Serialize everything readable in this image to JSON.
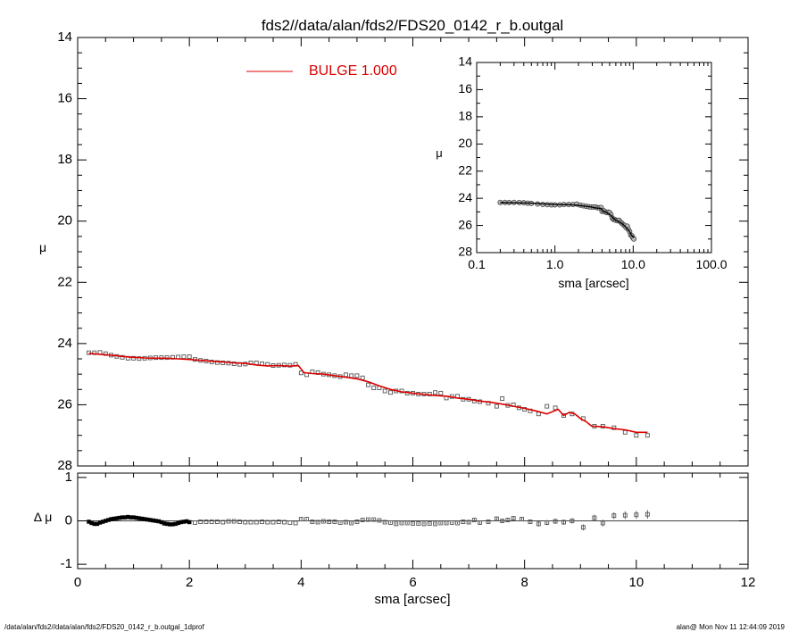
{
  "title": "fds2//data/alan/fds2/FDS20_0142_r_b.outgal",
  "footer_left": "/data/alan/fds2//data/alan/fds2/FDS20_0142_r_b.outgal_1dprof",
  "footer_right": "alan@  Mon Nov 11 12:44:09 2019",
  "colors": {
    "model": "#dd0000",
    "data": "#555555",
    "axes": "#000000"
  },
  "chart_data": [
    {
      "type": "scatter",
      "panel": "main",
      "xlabel": "",
      "ylabel": "μ",
      "xlim": [
        0,
        12
      ],
      "ylim": [
        28,
        14
      ],
      "y_ticks": [
        14,
        16,
        18,
        20,
        22,
        24,
        26,
        28
      ],
      "y_tick_labels": [
        "14",
        "16",
        "18",
        "20",
        "22",
        "24",
        "26",
        "28"
      ],
      "legend": {
        "label": "BULGE  1.000",
        "placement": "top-center"
      },
      "series": [
        {
          "name": "BULGE  1.000",
          "kind": "line",
          "x": [
            0.2,
            0.4,
            0.6,
            0.8,
            1.0,
            1.2,
            1.4,
            1.6,
            1.8,
            2.0,
            2.2,
            2.4,
            2.6,
            2.8,
            3.0,
            3.2,
            3.4,
            3.6,
            3.8,
            3.95,
            4.05,
            4.2,
            4.4,
            4.6,
            4.8,
            5.0,
            5.2,
            5.4,
            5.6,
            5.8,
            6.0,
            6.2,
            6.4,
            6.6,
            6.8,
            7.0,
            7.2,
            7.4,
            7.6,
            7.8,
            8.0,
            8.2,
            8.4,
            8.6,
            8.7,
            8.8,
            8.9,
            9.0,
            9.1,
            9.2,
            9.4,
            9.6,
            9.8,
            10.0,
            10.2
          ],
          "y": [
            24.32,
            24.35,
            24.38,
            24.42,
            24.45,
            24.47,
            24.48,
            24.48,
            24.5,
            24.52,
            24.55,
            24.58,
            24.6,
            24.63,
            24.65,
            24.7,
            24.73,
            24.72,
            24.74,
            24.72,
            24.95,
            24.98,
            25.0,
            25.05,
            25.1,
            25.15,
            25.25,
            25.38,
            25.5,
            25.58,
            25.62,
            25.66,
            25.7,
            25.72,
            25.78,
            25.82,
            25.88,
            25.92,
            25.98,
            26.05,
            26.12,
            26.2,
            26.3,
            26.15,
            26.35,
            26.25,
            26.3,
            26.45,
            26.55,
            26.7,
            26.72,
            26.78,
            26.82,
            26.9,
            26.9
          ]
        },
        {
          "name": "",
          "kind": "squares",
          "x": [
            0.2,
            0.3,
            0.4,
            0.5,
            0.6,
            0.7,
            0.8,
            0.9,
            1.0,
            1.1,
            1.2,
            1.3,
            1.4,
            1.5,
            1.6,
            1.7,
            1.8,
            1.9,
            2.0,
            2.1,
            2.2,
            2.3,
            2.4,
            2.5,
            2.6,
            2.7,
            2.8,
            2.9,
            3.0,
            3.1,
            3.2,
            3.3,
            3.4,
            3.5,
            3.6,
            3.7,
            3.8,
            3.9,
            4.0,
            4.1,
            4.2,
            4.3,
            4.4,
            4.5,
            4.6,
            4.7,
            4.8,
            4.9,
            5.0,
            5.1,
            5.2,
            5.3,
            5.4,
            5.5,
            5.6,
            5.7,
            5.8,
            5.9,
            6.0,
            6.1,
            6.2,
            6.3,
            6.4,
            6.5,
            6.6,
            6.7,
            6.8,
            6.9,
            7.0,
            7.1,
            7.2,
            7.35,
            7.5,
            7.6,
            7.7,
            7.8,
            7.9,
            8.0,
            8.1,
            8.25,
            8.4,
            8.55,
            8.7,
            8.85,
            9.05,
            9.25,
            9.4,
            9.6,
            9.8,
            10.0,
            10.2
          ],
          "y": [
            24.3,
            24.3,
            24.29,
            24.33,
            24.38,
            24.42,
            24.45,
            24.48,
            24.48,
            24.49,
            24.48,
            24.47,
            24.46,
            24.46,
            24.46,
            24.45,
            24.44,
            24.43,
            24.43,
            24.52,
            24.55,
            24.57,
            24.6,
            24.62,
            24.63,
            24.64,
            24.66,
            24.68,
            24.67,
            24.63,
            24.63,
            24.66,
            24.68,
            24.72,
            24.71,
            24.7,
            24.71,
            24.68,
            24.96,
            25.02,
            24.92,
            24.95,
            25.0,
            25.02,
            25.05,
            25.08,
            25.02,
            25.05,
            25.05,
            25.12,
            25.35,
            25.45,
            25.45,
            25.55,
            25.6,
            25.55,
            25.55,
            25.62,
            25.62,
            25.65,
            25.65,
            25.65,
            25.6,
            25.62,
            25.78,
            25.73,
            25.72,
            25.82,
            25.82,
            25.88,
            25.9,
            25.95,
            26.05,
            25.8,
            26.02,
            26.0,
            26.1,
            26.15,
            26.2,
            26.3,
            26.05,
            26.1,
            26.35,
            26.3,
            26.45,
            26.7,
            26.7,
            26.75,
            26.9,
            27.0,
            27.0
          ]
        }
      ]
    },
    {
      "type": "scatter",
      "panel": "residual",
      "xlabel": "sma [arcsec]",
      "ylabel": "Δ μ",
      "xlim": [
        0,
        12
      ],
      "ylim": [
        -1.1,
        1.1
      ],
      "x_ticks": [
        0,
        2,
        4,
        6,
        8,
        10,
        12
      ],
      "x_tick_labels": [
        "0",
        "2",
        "4",
        "6",
        "8",
        "10",
        "12"
      ],
      "y_ticks": [
        1,
        0,
        -1
      ],
      "y_tick_labels": [
        "1",
        "0",
        "-1"
      ],
      "series": [
        {
          "name": "",
          "kind": "squares",
          "x": [
            0.2,
            0.25,
            0.3,
            0.35,
            0.4,
            0.45,
            0.5,
            0.55,
            0.6,
            0.65,
            0.7,
            0.75,
            0.8,
            0.85,
            0.9,
            0.95,
            1.0,
            1.05,
            1.1,
            1.15,
            1.2,
            1.25,
            1.3,
            1.35,
            1.4,
            1.45,
            1.5,
            1.55,
            1.6,
            1.65,
            1.7,
            1.75,
            1.8,
            1.85,
            1.9,
            1.95,
            2.0,
            2.1,
            2.2,
            2.3,
            2.4,
            2.5,
            2.6,
            2.7,
            2.8,
            2.9,
            3.0,
            3.1,
            3.2,
            3.3,
            3.4,
            3.5,
            3.6,
            3.7,
            3.8,
            3.9,
            4.0,
            4.1,
            4.2,
            4.3,
            4.4,
            4.5,
            4.6,
            4.7,
            4.8,
            4.9,
            5.0,
            5.1,
            5.2,
            5.3,
            5.4,
            5.5,
            5.6,
            5.7,
            5.8,
            5.9,
            6.0,
            6.1,
            6.2,
            6.3,
            6.4,
            6.5,
            6.6,
            6.7,
            6.8,
            6.9,
            7.0,
            7.1,
            7.2,
            7.35,
            7.5,
            7.6,
            7.7,
            7.8,
            7.95,
            8.1,
            8.25,
            8.4,
            8.55,
            8.7,
            8.85,
            9.05,
            9.25,
            9.4,
            9.6,
            9.8,
            10.0,
            10.2
          ],
          "y": [
            -0.02,
            -0.05,
            -0.07,
            -0.07,
            -0.04,
            -0.02,
            0.0,
            0.02,
            0.04,
            0.05,
            0.06,
            0.07,
            0.08,
            0.08,
            0.09,
            0.08,
            0.08,
            0.07,
            0.06,
            0.05,
            0.04,
            0.03,
            0.02,
            0.01,
            0.0,
            -0.01,
            -0.03,
            -0.06,
            -0.07,
            -0.08,
            -0.08,
            -0.07,
            -0.05,
            -0.03,
            -0.02,
            -0.01,
            -0.03,
            -0.04,
            -0.02,
            -0.02,
            -0.02,
            -0.02,
            -0.03,
            -0.01,
            -0.01,
            -0.02,
            -0.03,
            -0.03,
            -0.03,
            -0.02,
            -0.03,
            -0.03,
            -0.02,
            -0.03,
            -0.04,
            -0.05,
            0.04,
            0.04,
            -0.02,
            -0.03,
            -0.01,
            -0.02,
            -0.02,
            -0.04,
            -0.03,
            -0.05,
            -0.02,
            0.02,
            0.03,
            0.03,
            0.01,
            -0.03,
            -0.04,
            -0.07,
            -0.05,
            -0.05,
            -0.06,
            -0.06,
            -0.07,
            -0.06,
            -0.07,
            -0.05,
            -0.05,
            -0.04,
            -0.05,
            -0.02,
            -0.03,
            0.02,
            -0.04,
            -0.02,
            0.05,
            0.0,
            0.02,
            0.06,
            0.04,
            -0.02,
            -0.07,
            -0.04,
            -0.01,
            -0.03,
            0.0,
            -0.15,
            0.07,
            -0.05,
            0.12,
            0.13,
            0.14,
            0.15
          ],
          "err": [
            0.01,
            0.01,
            0.01,
            0.01,
            0.01,
            0.01,
            0.01,
            0.01,
            0.01,
            0.01,
            0.01,
            0.01,
            0.01,
            0.01,
            0.01,
            0.01,
            0.01,
            0.01,
            0.01,
            0.01,
            0.01,
            0.01,
            0.01,
            0.01,
            0.01,
            0.01,
            0.01,
            0.01,
            0.01,
            0.01,
            0.01,
            0.01,
            0.01,
            0.01,
            0.01,
            0.01,
            0.01,
            0.01,
            0.01,
            0.01,
            0.01,
            0.01,
            0.01,
            0.01,
            0.01,
            0.01,
            0.01,
            0.01,
            0.01,
            0.01,
            0.01,
            0.01,
            0.01,
            0.01,
            0.01,
            0.01,
            0.02,
            0.02,
            0.02,
            0.02,
            0.02,
            0.02,
            0.02,
            0.02,
            0.02,
            0.02,
            0.02,
            0.02,
            0.02,
            0.02,
            0.02,
            0.02,
            0.02,
            0.02,
            0.02,
            0.02,
            0.02,
            0.02,
            0.02,
            0.02,
            0.02,
            0.02,
            0.02,
            0.02,
            0.02,
            0.02,
            0.03,
            0.03,
            0.04,
            0.04,
            0.04,
            0.04,
            0.05,
            0.05,
            0.05,
            0.05,
            0.06,
            0.06,
            0.06,
            0.06,
            0.06,
            0.07,
            0.07,
            0.08,
            0.08,
            0.09,
            0.09,
            0.1
          ]
        }
      ]
    },
    {
      "type": "scatter",
      "panel": "inset",
      "xscale": "log",
      "xlabel": "sma [arcsec]",
      "ylabel": "μ",
      "xlim": [
        0.1,
        100.0
      ],
      "ylim": [
        28,
        14
      ],
      "x_ticks": [
        0.1,
        1.0,
        10.0,
        100.0
      ],
      "x_tick_labels": [
        "0.1",
        "1.0",
        "10.0",
        "100.0"
      ],
      "y_ticks": [
        14,
        16,
        18,
        20,
        22,
        24,
        26,
        28
      ],
      "y_tick_labels": [
        "14",
        "16",
        "18",
        "20",
        "22",
        "24",
        "26",
        "28"
      ],
      "series": [
        {
          "name": "",
          "kind": "line",
          "x": [
            0.2,
            0.3,
            0.5,
            0.8,
            1.2,
            1.7,
            2.2,
            2.8,
            3.4,
            3.9,
            4.1,
            4.6,
            5.2,
            5.6,
            6.0,
            6.5,
            7.0,
            7.5,
            8.0,
            8.5,
            9.0,
            9.5,
            10.2
          ],
          "y": [
            24.32,
            24.33,
            24.36,
            24.43,
            24.47,
            24.48,
            24.55,
            24.63,
            24.72,
            24.74,
            24.95,
            25.05,
            25.25,
            25.48,
            25.62,
            25.7,
            25.82,
            25.95,
            26.1,
            26.28,
            26.45,
            26.72,
            26.9
          ]
        },
        {
          "name": "",
          "kind": "circles",
          "x": [
            0.2,
            0.23,
            0.26,
            0.3,
            0.35,
            0.4,
            0.45,
            0.5,
            0.6,
            0.7,
            0.8,
            0.9,
            1.0,
            1.15,
            1.3,
            1.5,
            1.7,
            1.9,
            2.1,
            2.3,
            2.5,
            2.7,
            2.9,
            3.1,
            3.3,
            3.5,
            3.7,
            3.9,
            4.0,
            4.2,
            4.4,
            4.6,
            4.8,
            5.0,
            5.2,
            5.4,
            5.6,
            5.8,
            6.0,
            6.3,
            6.6,
            6.9,
            7.2,
            7.5,
            7.8,
            8.1,
            8.4,
            8.7,
            9.0,
            9.3,
            9.6,
            9.9,
            10.2
          ],
          "y": [
            24.3,
            24.3,
            24.31,
            24.3,
            24.31,
            24.33,
            24.36,
            24.38,
            24.42,
            24.45,
            24.47,
            24.48,
            24.48,
            24.48,
            24.46,
            24.46,
            24.45,
            24.43,
            24.5,
            24.55,
            24.58,
            24.62,
            24.65,
            24.64,
            24.64,
            24.7,
            24.7,
            24.68,
            24.96,
            24.92,
            25.0,
            25.05,
            25.02,
            25.05,
            25.2,
            25.45,
            25.55,
            25.55,
            25.62,
            25.65,
            25.62,
            25.75,
            25.85,
            25.95,
            26.0,
            26.15,
            26.05,
            26.3,
            26.45,
            26.7,
            26.75,
            26.9,
            27.0
          ]
        }
      ]
    }
  ]
}
